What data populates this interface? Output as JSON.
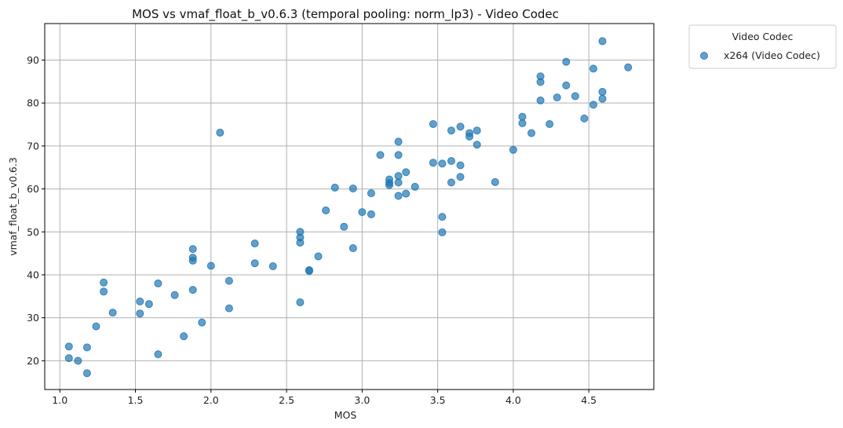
{
  "chart_data": {
    "type": "scatter",
    "title": "MOS vs vmaf_float_b_v0.6.3 (temporal pooling: norm_lp3) - Video Codec",
    "xlabel": "MOS",
    "ylabel": "vmaf_float_b_v0.6.3",
    "xlim": [
      0.9,
      4.93
    ],
    "ylim": [
      13.3,
      98.5
    ],
    "xticks": [
      "1.0",
      "1.5",
      "2.0",
      "2.5",
      "3.0",
      "3.5",
      "4.0",
      "4.5"
    ],
    "xtick_values": [
      1.0,
      1.5,
      2.0,
      2.5,
      3.0,
      3.5,
      4.0,
      4.5
    ],
    "yticks": [
      "20",
      "30",
      "40",
      "50",
      "60",
      "70",
      "80",
      "90"
    ],
    "ytick_values": [
      20,
      30,
      40,
      50,
      60,
      70,
      80,
      90
    ],
    "grid": true,
    "legend": {
      "title": "Video Codec",
      "placement": "outside-top-right",
      "entries": [
        "x264 (Video Codec)"
      ]
    },
    "series": [
      {
        "name": "x264 (Video Codec)",
        "color": "#1f77b4",
        "points": [
          [
            1.06,
            23.3
          ],
          [
            1.06,
            20.6
          ],
          [
            1.12,
            20.0
          ],
          [
            1.18,
            23.1
          ],
          [
            1.18,
            17.1
          ],
          [
            1.24,
            28.0
          ],
          [
            1.29,
            38.2
          ],
          [
            1.29,
            36.1
          ],
          [
            1.35,
            31.2
          ],
          [
            1.53,
            33.8
          ],
          [
            1.53,
            31.0
          ],
          [
            1.59,
            33.2
          ],
          [
            1.65,
            38.0
          ],
          [
            1.65,
            21.5
          ],
          [
            1.76,
            35.3
          ],
          [
            1.82,
            25.7
          ],
          [
            1.88,
            46.0
          ],
          [
            1.88,
            44.0
          ],
          [
            1.88,
            43.3
          ],
          [
            1.88,
            36.5
          ],
          [
            1.94,
            28.9
          ],
          [
            2.0,
            42.1
          ],
          [
            2.06,
            73.1
          ],
          [
            2.12,
            38.6
          ],
          [
            2.12,
            32.2
          ],
          [
            2.29,
            47.3
          ],
          [
            2.29,
            42.7
          ],
          [
            2.41,
            42.0
          ],
          [
            2.59,
            50.0
          ],
          [
            2.59,
            48.7
          ],
          [
            2.59,
            47.5
          ],
          [
            2.59,
            33.6
          ],
          [
            2.65,
            41.1
          ],
          [
            2.65,
            40.9
          ],
          [
            2.71,
            44.3
          ],
          [
            2.76,
            55.0
          ],
          [
            2.82,
            60.3
          ],
          [
            2.88,
            51.2
          ],
          [
            2.94,
            60.1
          ],
          [
            2.94,
            46.2
          ],
          [
            3.0,
            54.6
          ],
          [
            3.06,
            59.0
          ],
          [
            3.06,
            54.1
          ],
          [
            3.12,
            67.9
          ],
          [
            3.18,
            62.2
          ],
          [
            3.18,
            61.4
          ],
          [
            3.18,
            60.9
          ],
          [
            3.24,
            71.0
          ],
          [
            3.24,
            67.9
          ],
          [
            3.24,
            63.0
          ],
          [
            3.24,
            61.5
          ],
          [
            3.24,
            58.4
          ],
          [
            3.29,
            63.9
          ],
          [
            3.29,
            58.9
          ],
          [
            3.35,
            60.5
          ],
          [
            3.47,
            75.1
          ],
          [
            3.47,
            66.1
          ],
          [
            3.53,
            65.9
          ],
          [
            3.53,
            53.5
          ],
          [
            3.53,
            49.9
          ],
          [
            3.59,
            73.6
          ],
          [
            3.59,
            66.5
          ],
          [
            3.59,
            61.5
          ],
          [
            3.65,
            74.5
          ],
          [
            3.65,
            65.5
          ],
          [
            3.65,
            62.8
          ],
          [
            3.71,
            73.0
          ],
          [
            3.71,
            72.2
          ],
          [
            3.76,
            73.6
          ],
          [
            3.76,
            70.3
          ],
          [
            3.88,
            61.6
          ],
          [
            4.0,
            69.1
          ],
          [
            4.06,
            76.8
          ],
          [
            4.06,
            75.3
          ],
          [
            4.12,
            73.0
          ],
          [
            4.18,
            86.2
          ],
          [
            4.18,
            84.9
          ],
          [
            4.18,
            80.6
          ],
          [
            4.24,
            75.1
          ],
          [
            4.29,
            81.3
          ],
          [
            4.35,
            89.6
          ],
          [
            4.35,
            84.1
          ],
          [
            4.41,
            81.6
          ],
          [
            4.47,
            76.4
          ],
          [
            4.53,
            88.0
          ],
          [
            4.53,
            79.6
          ],
          [
            4.59,
            94.4
          ],
          [
            4.59,
            82.6
          ],
          [
            4.59,
            81.0
          ],
          [
            4.76,
            88.3
          ]
        ]
      }
    ]
  }
}
